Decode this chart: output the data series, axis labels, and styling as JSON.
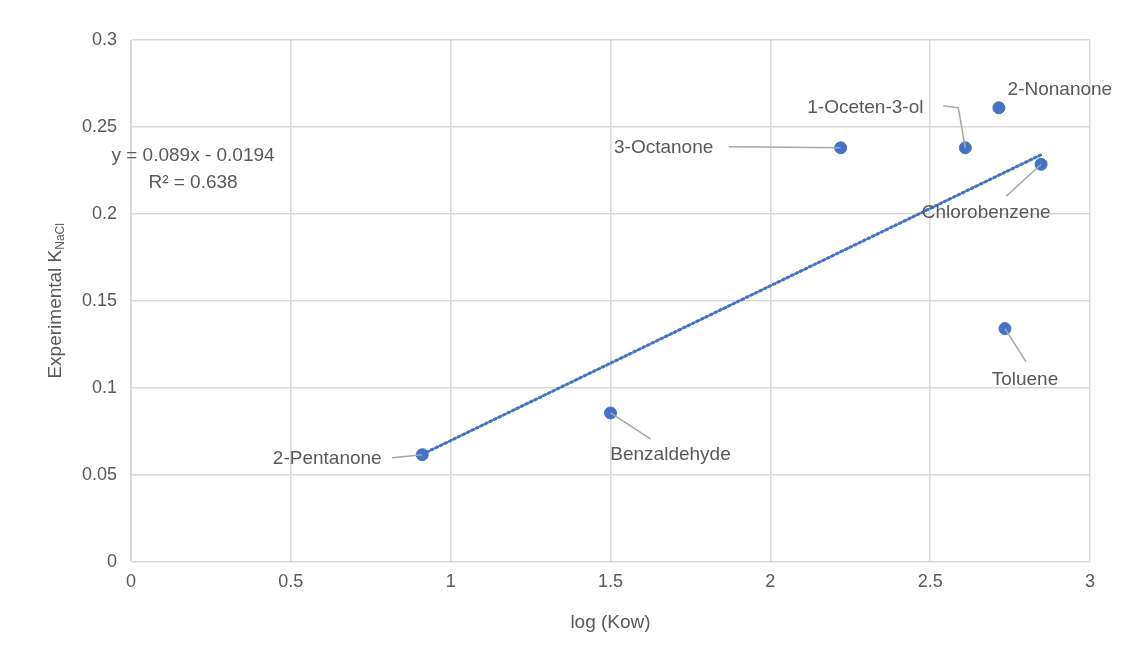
{
  "chart_data": {
    "type": "scatter",
    "xlabel": "log (Kow)",
    "ylabel": "Experimental K$_{NaCl}$",
    "xlim": [
      0,
      3
    ],
    "xticks": [
      0,
      0.5,
      1,
      1.5,
      2,
      2.5,
      3
    ],
    "ylim": [
      0,
      0.3
    ],
    "yticks": [
      0,
      0.05,
      0.1,
      0.15,
      0.2,
      0.25,
      0.3
    ],
    "grid": true,
    "legend": false,
    "marker": "circle",
    "series": [
      {
        "color": "#4472c4",
        "x": [
          0.911,
          1.5,
          2.22,
          2.61,
          2.715,
          2.847,
          2.734
        ],
        "values": [
          0.0615,
          0.0855,
          0.238,
          0.238,
          0.261,
          0.2285,
          0.134
        ]
      },
      {
        "type": "line",
        "color": "#4472c4",
        "line_style": "dotted",
        "marker": "none",
        "x": [
          0.911,
          2.847
        ],
        "values": [
          0.0617,
          0.234
        ]
      }
    ],
    "annotations": [
      "y = 0.089x - 0.0194",
      "R² = 0.638",
      {
        "text": "2-Pentanone",
        "x": 0.911,
        "y": 0.0615
      },
      {
        "text": "Benzaldehyde",
        "x": 1.5,
        "y": 0.0855
      },
      {
        "text": "3-Octanone",
        "x": 2.22,
        "y": 0.238
      },
      {
        "text": "1-Oceten-3-ol",
        "x": 2.61,
        "y": 0.238
      },
      {
        "text": "2-Nonanone",
        "x": 2.715,
        "y": 0.261
      },
      {
        "text": "Chlorobenzene",
        "x": 2.847,
        "y": 0.2285
      },
      {
        "text": "Toluene",
        "x": 2.734,
        "y": 0.134
      }
    ]
  }
}
